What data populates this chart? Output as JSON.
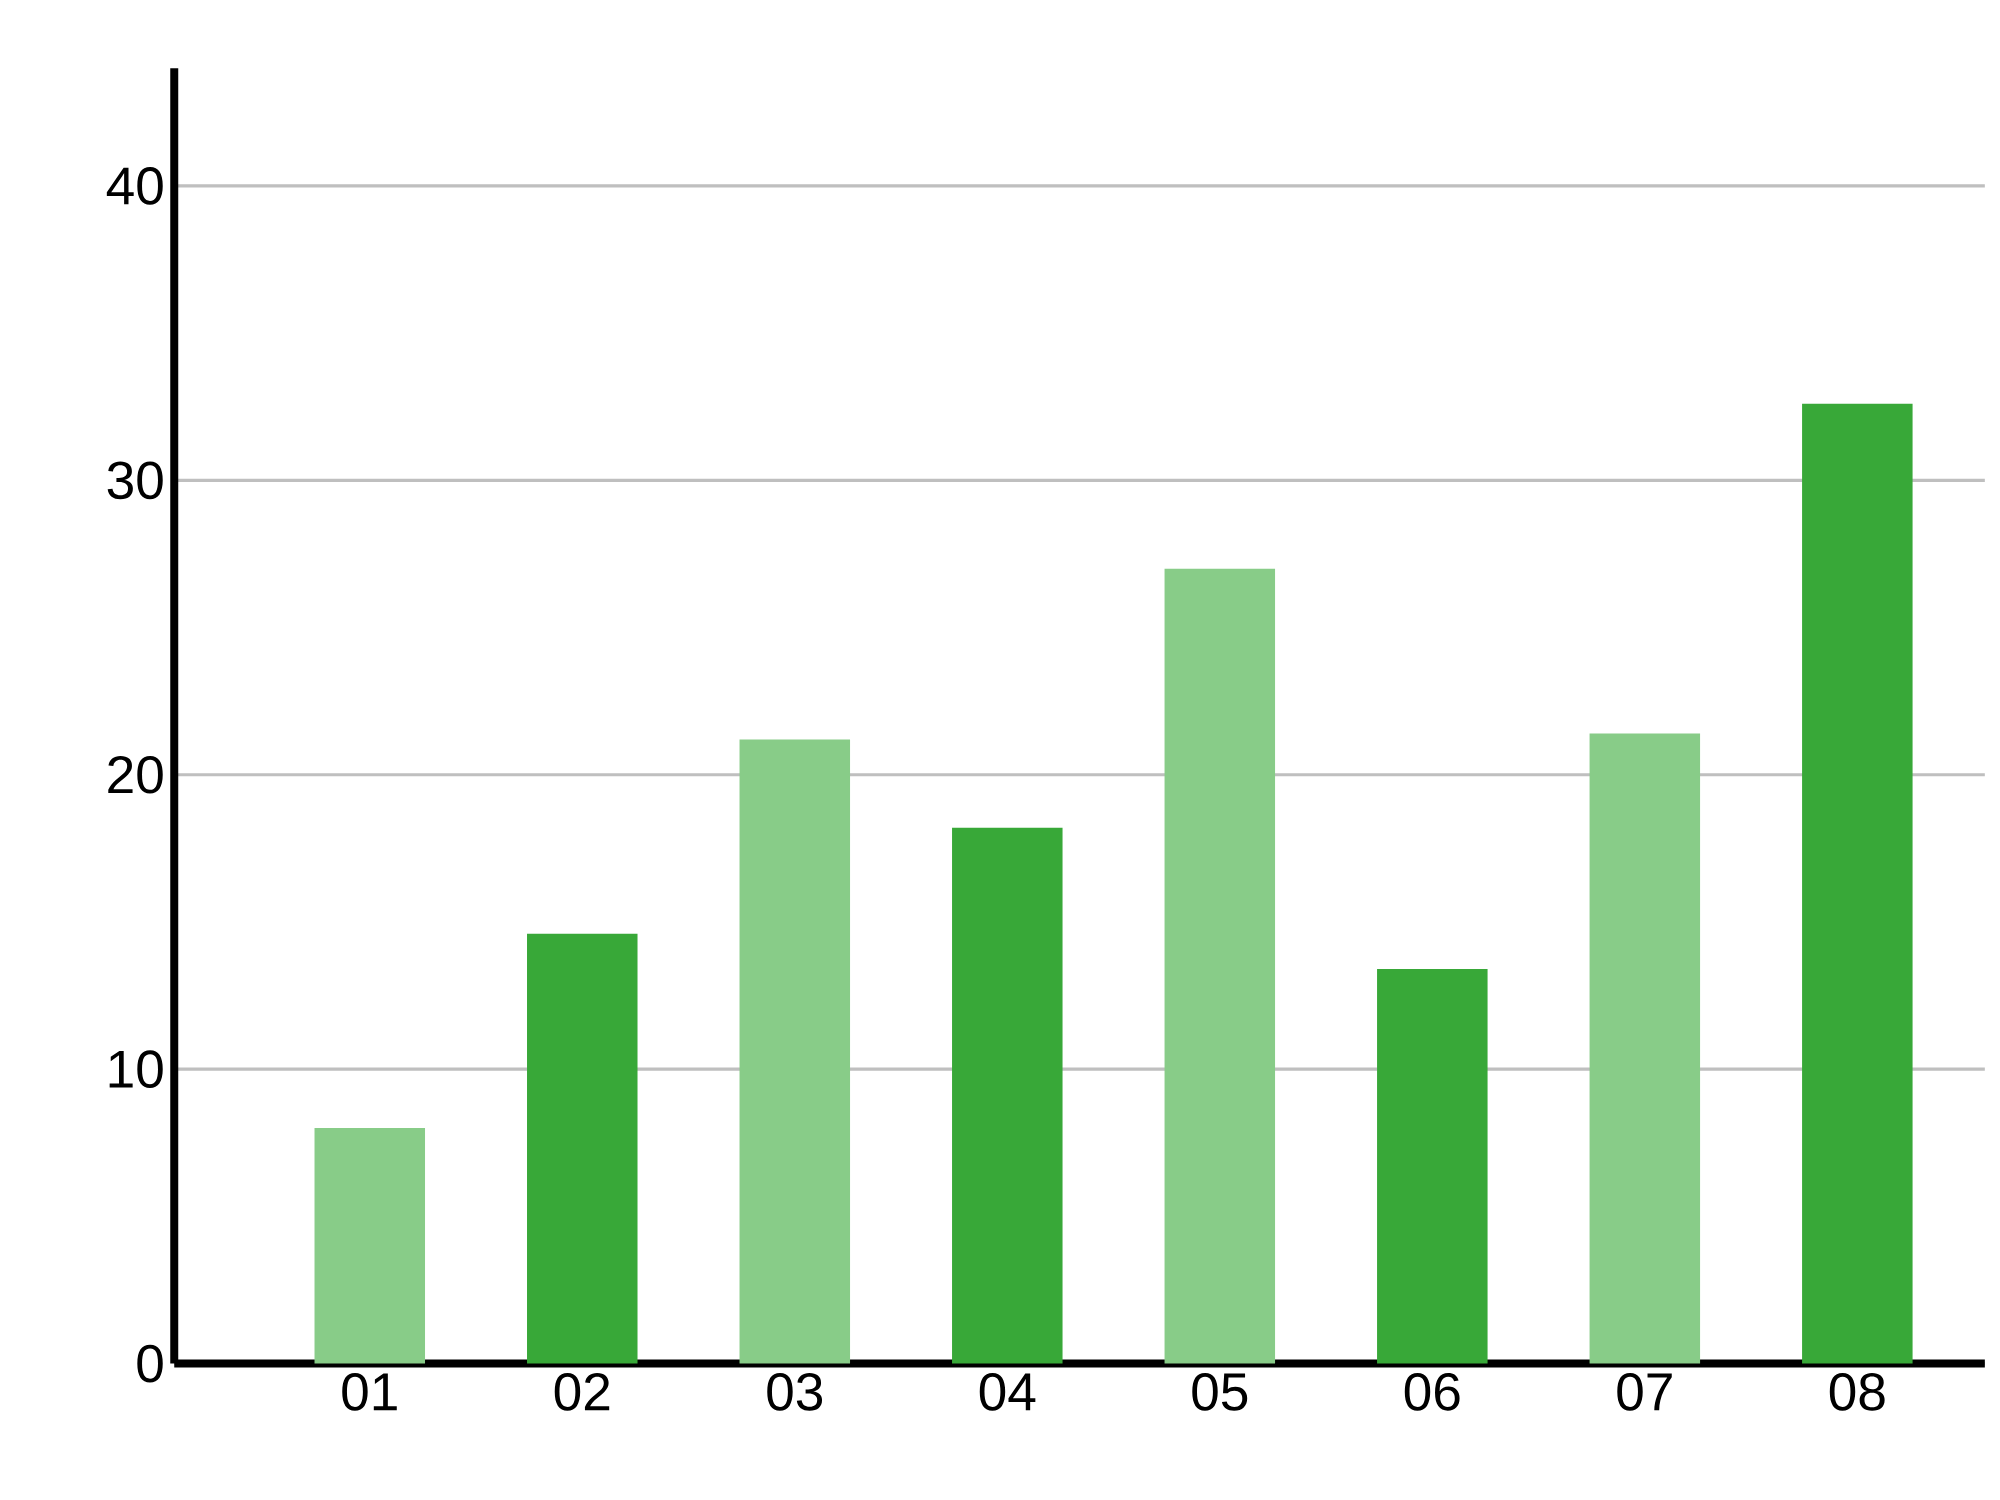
{
  "chart_data": {
    "type": "bar",
    "categories": [
      "01",
      "02",
      "03",
      "04",
      "05",
      "06",
      "07",
      "08"
    ],
    "values": [
      8.0,
      14.6,
      21.2,
      18.2,
      27.0,
      13.4,
      21.4,
      32.6
    ],
    "colors": [
      "#88cc88",
      "#38a838",
      "#88cc88",
      "#38a838",
      "#88cc88",
      "#38a838",
      "#88cc88",
      "#38a838"
    ],
    "ylim": [
      0,
      44
    ],
    "yticks": [
      0,
      10,
      20,
      30,
      40
    ],
    "grid": "y"
  }
}
